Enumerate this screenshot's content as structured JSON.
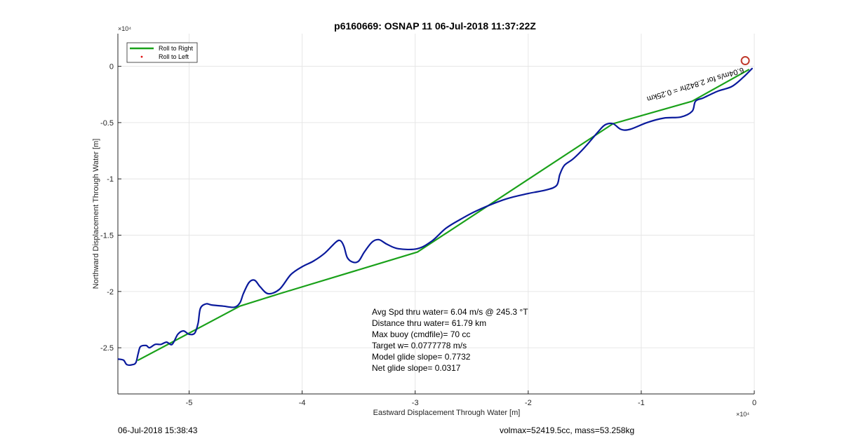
{
  "chart_data": {
    "type": "line",
    "title": "p6160669: OSNAP 11 06-Jul-2018 11:37:22Z",
    "xlabel": "Eastward Displacement Through Water [m]",
    "ylabel": "Northward Displacement Through Water [m]",
    "x_exponent_label": "×10⁴",
    "y_exponent_label": "×10⁴",
    "xlim": [
      -5.63,
      0
    ],
    "ylim": [
      -2.91,
      0.29
    ],
    "x_ticks": [
      -5,
      -4,
      -3,
      -2,
      -1,
      0
    ],
    "y_ticks": [
      0,
      -0.5,
      -1,
      -1.5,
      -2,
      -2.5
    ],
    "x_tick_labels": [
      "-5",
      "-4",
      "-3",
      "-2",
      "-1",
      "0"
    ],
    "y_tick_labels": [
      "0",
      "-0.5",
      "-1",
      "-1.5",
      "-2",
      "-2.5"
    ],
    "grid": true,
    "legend_position": "top-left",
    "legend": [
      "Roll to Right",
      "Roll to Left"
    ],
    "series": [
      {
        "name": "Roll to Right",
        "color": "#1aa11a",
        "style": "line",
        "x": [
          -0.05,
          -0.55,
          -1.25,
          -2.98,
          -4.2,
          -4.55,
          -5.45
        ],
        "y": [
          -0.03,
          -0.31,
          -0.51,
          -1.65,
          -2.02,
          -2.13,
          -2.61
        ]
      },
      {
        "name": "Roll to Left",
        "color": "#e01010",
        "style": "marker",
        "x": [],
        "y": []
      },
      {
        "name": "",
        "color": "#0a1a9c",
        "style": "line",
        "x": [
          -0.02,
          -0.1,
          -0.2,
          -0.32,
          -0.45,
          -0.52,
          -0.55,
          -0.65,
          -0.8,
          -0.95,
          -1.1,
          -1.18,
          -1.25,
          -1.32,
          -1.38,
          -1.5,
          -1.6,
          -1.68,
          -1.72,
          -1.75,
          -1.85,
          -2.0,
          -2.2,
          -2.45,
          -2.6,
          -2.73,
          -2.85,
          -2.98,
          -3.15,
          -3.25,
          -3.32,
          -3.38,
          -3.45,
          -3.5,
          -3.55,
          -3.6,
          -3.63,
          -3.66,
          -3.7,
          -3.8,
          -3.9,
          -4.0,
          -4.1,
          -4.2,
          -4.3,
          -4.37,
          -4.42,
          -4.47,
          -4.52,
          -4.55,
          -4.6,
          -4.7,
          -4.8,
          -4.85,
          -4.9,
          -4.92,
          -4.95,
          -5.0,
          -5.05,
          -5.1,
          -5.15,
          -5.2,
          -5.25,
          -5.3,
          -5.35,
          -5.38,
          -5.43,
          -5.45,
          -5.47,
          -5.5,
          -5.55,
          -5.58,
          -5.63
        ],
        "y": [
          -0.02,
          -0.1,
          -0.18,
          -0.22,
          -0.28,
          -0.31,
          -0.4,
          -0.45,
          -0.46,
          -0.5,
          -0.56,
          -0.56,
          -0.51,
          -0.52,
          -0.58,
          -0.72,
          -0.82,
          -0.88,
          -0.96,
          -1.06,
          -1.1,
          -1.13,
          -1.18,
          -1.28,
          -1.36,
          -1.44,
          -1.55,
          -1.62,
          -1.62,
          -1.58,
          -1.54,
          -1.56,
          -1.65,
          -1.73,
          -1.74,
          -1.7,
          -1.6,
          -1.55,
          -1.56,
          -1.66,
          -1.73,
          -1.78,
          -1.85,
          -1.98,
          -2.02,
          -1.96,
          -1.9,
          -1.92,
          -2.02,
          -2.1,
          -2.14,
          -2.13,
          -2.12,
          -2.11,
          -2.15,
          -2.28,
          -2.37,
          -2.38,
          -2.35,
          -2.38,
          -2.47,
          -2.45,
          -2.47,
          -2.47,
          -2.5,
          -2.48,
          -2.49,
          -2.55,
          -2.63,
          -2.65,
          -2.65,
          -2.61,
          -2.6
        ]
      }
    ],
    "marker": {
      "x": -0.08,
      "y": 0.05,
      "color": "#c0392b"
    },
    "rotated_annotation": "6.04m/s for 2.842hr =  0.25km",
    "annotations": [
      "Avg Spd thru water=  6.04 m/s @ 245.3 °T",
      "Distance thru water= 61.79 km",
      "Max buoy (cmdfile)= 70 cc",
      "Target w= 0.0777778 m/s",
      "Model glide slope= 0.7732",
      "Net glide slope= 0.0317"
    ]
  },
  "footer": {
    "timestamp": "06-Jul-2018 15:38:43",
    "vol_mass": "volmax=52419.5cc, mass=53.258kg"
  }
}
